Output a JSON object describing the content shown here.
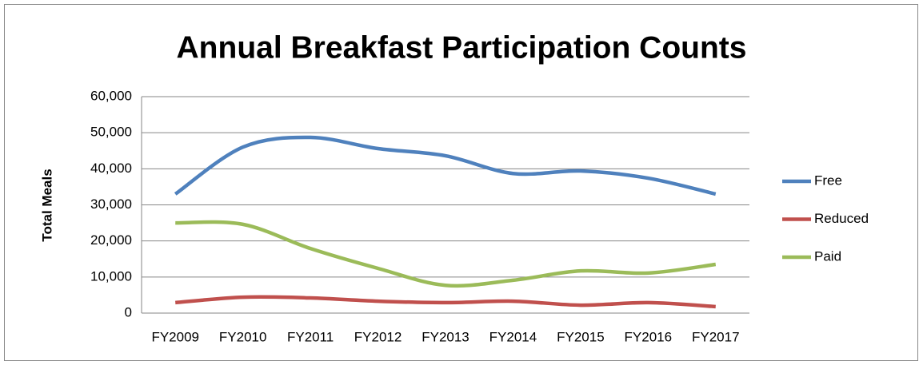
{
  "chart_data": {
    "type": "line",
    "title": "Annual Breakfast Participation Counts",
    "y_label": "Total Meals",
    "categories": [
      "FY2009",
      "FY2010",
      "FY2011",
      "FY2012",
      "FY2013",
      "FY2014",
      "FY2015",
      "FY2016",
      "FY2017"
    ],
    "series": [
      {
        "name": "Free",
        "color": "#4f81bd",
        "values": [
          33000,
          46000,
          48700,
          45600,
          43600,
          38700,
          39400,
          37400,
          33000
        ]
      },
      {
        "name": "Reduced",
        "color": "#c0504d",
        "values": [
          2900,
          4400,
          4200,
          3300,
          2900,
          3300,
          2200,
          2900,
          1800
        ]
      },
      {
        "name": "Paid",
        "color": "#9bbb59",
        "values": [
          25000,
          24600,
          17900,
          12400,
          7700,
          9100,
          11700,
          11100,
          13500
        ]
      }
    ],
    "ylim": [
      0,
      60000
    ],
    "yticks": [
      0,
      {
        "value": 10000,
        "label": "10,000"
      },
      {
        "value": 20000,
        "label": "20,000"
      },
      {
        "value": 30000,
        "label": "30,000"
      },
      {
        "value": 40000,
        "label": "40,000"
      },
      {
        "value": 50000,
        "label": "50,000"
      },
      {
        "value": 60000,
        "label": "60,000"
      }
    ],
    "grid": true,
    "legend": "right"
  }
}
